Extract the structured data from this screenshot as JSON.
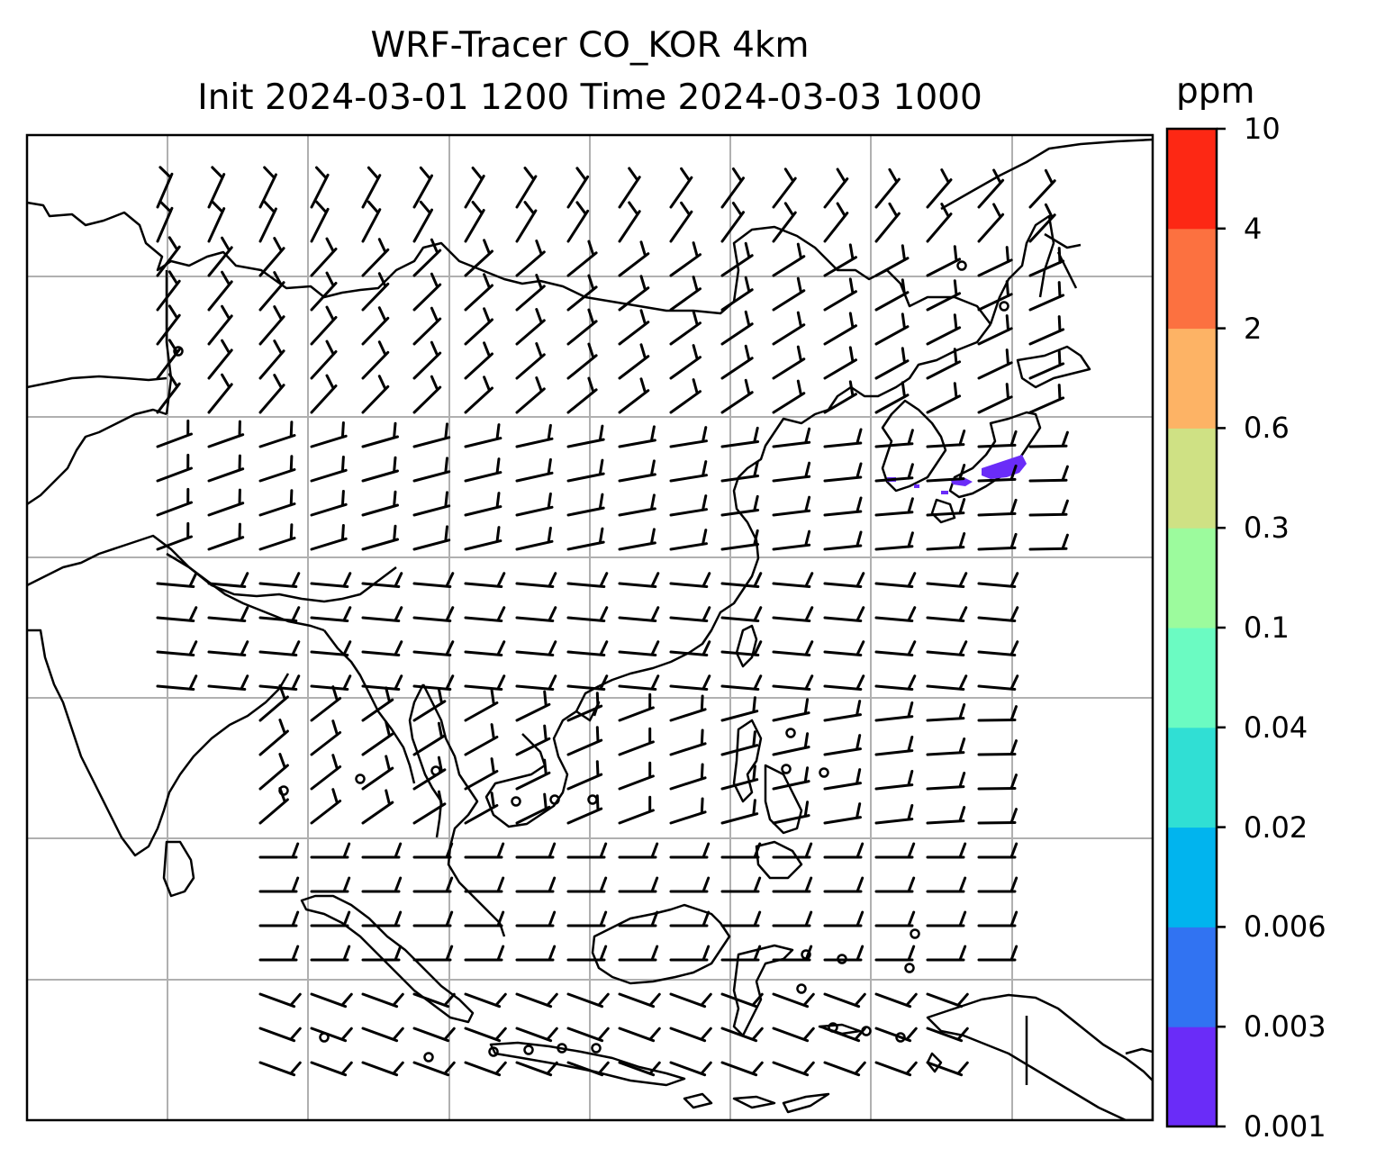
{
  "title": {
    "line1": "WRF-Tracer CO_KOR 4km",
    "line2": "Init 2024-03-01 1200 Time 2024-03-03 1000"
  },
  "colorbar": {
    "unit": "ppm",
    "levels": [
      "0.001",
      "0.003",
      "0.006",
      "0.02",
      "0.04",
      "0.1",
      "0.3",
      "0.6",
      "2",
      "4",
      "10"
    ],
    "colors": [
      "#6a2cf8",
      "#3173f2",
      "#01b4ee",
      "#30dfd4",
      "#6bfbc2",
      "#9cfb9d",
      "#cfe184",
      "#fdb365",
      "#fc7140",
      "#fd2814"
    ]
  },
  "map": {
    "frame_color": "#000000",
    "gridline_color": "#b0b0b0",
    "coastline_color": "#000000",
    "barb_color": "#000000",
    "plume_color": "#6a2cf8",
    "wind_barbs": "wind barbs (knots) over East and Southeast Asia; calm winds shown as circles",
    "plume_location": "Korea / Sea of Japan"
  }
}
